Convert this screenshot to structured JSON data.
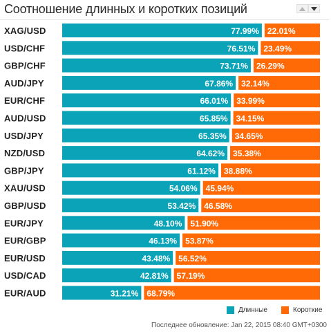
{
  "title": "Соотношение длинных и коротких позиций",
  "sort": {
    "up_icon": "sort-up-icon",
    "down_icon": "sort-down-icon"
  },
  "colors": {
    "long": "#0aa3b7",
    "short": "#ff6a06",
    "track": "#ffffff"
  },
  "chart_data": {
    "type": "bar",
    "orientation": "horizontal-stacked-100",
    "categories": [
      "XAG/USD",
      "USD/CHF",
      "GBP/CHF",
      "AUD/JPY",
      "EUR/CHF",
      "AUD/USD",
      "USD/JPY",
      "NZD/USD",
      "GBP/JPY",
      "XAU/USD",
      "GBP/USD",
      "EUR/JPY",
      "EUR/GBP",
      "EUR/USD",
      "USD/CAD",
      "EUR/AUD"
    ],
    "series": [
      {
        "name": "Длинные",
        "values": [
          77.99,
          76.51,
          73.71,
          67.86,
          66.01,
          65.85,
          65.35,
          64.62,
          61.12,
          54.06,
          53.42,
          48.1,
          46.13,
          43.48,
          42.81,
          31.21
        ]
      },
      {
        "name": "Короткие",
        "values": [
          22.01,
          23.49,
          26.29,
          32.14,
          33.99,
          34.15,
          34.65,
          35.38,
          38.88,
          45.94,
          46.58,
          51.9,
          53.87,
          56.52,
          57.19,
          68.79
        ]
      }
    ],
    "value_labels": [
      [
        "77.99%",
        "22.01%"
      ],
      [
        "76.51%",
        "23.49%"
      ],
      [
        "73.71%",
        "26.29%"
      ],
      [
        "67.86%",
        "32.14%"
      ],
      [
        "66.01%",
        "33.99%"
      ],
      [
        "65.85%",
        "34.15%"
      ],
      [
        "65.35%",
        "34.65%"
      ],
      [
        "64.62%",
        "35.38%"
      ],
      [
        "61.12%",
        "38.88%"
      ],
      [
        "54.06%",
        "45.94%"
      ],
      [
        "53.42%",
        "46.58%"
      ],
      [
        "48.10%",
        "51.90%"
      ],
      [
        "46.13%",
        "53.87%"
      ],
      [
        "43.48%",
        "56.52%"
      ],
      [
        "42.81%",
        "57.19%"
      ],
      [
        "31.21%",
        "68.79%"
      ]
    ],
    "legend": "bottom-right"
  },
  "legend": {
    "long_label": "Длинные",
    "short_label": "Короткие"
  },
  "footer": "Последнее обновление: Jan 22, 2015 08:40 GMT+0300"
}
